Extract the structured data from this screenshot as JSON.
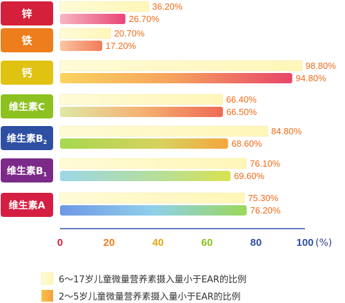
{
  "chart_data": {
    "type": "bar",
    "orientation": "horizontal",
    "categories": [
      "锌",
      "铁",
      "钙",
      "维生素C",
      "维生素B2",
      "维生素B1",
      "维生素A"
    ],
    "category_display": [
      {
        "main": "锌",
        "sub": ""
      },
      {
        "main": "铁",
        "sub": ""
      },
      {
        "main": "钙",
        "sub": ""
      },
      {
        "main": "维生素C",
        "sub": ""
      },
      {
        "main": "维生素B",
        "sub": "2"
      },
      {
        "main": "维生素B",
        "sub": "1"
      },
      {
        "main": "维生素A",
        "sub": ""
      }
    ],
    "category_colors": [
      "#d4203a",
      "#ee7d1b",
      "#e0c212",
      "#8cc11f",
      "#2f4fa3",
      "#7c2a8a",
      "#d51f42"
    ],
    "series": [
      {
        "name": "6～17岁儿童微量营养素摄入量小于EAR的比例",
        "values": [
          36.2,
          20.7,
          98.8,
          66.4,
          84.8,
          76.1,
          75.3
        ],
        "labels": [
          "36.20%",
          "20.70%",
          "98.80%",
          "66.40%",
          "84.80%",
          "76.10%",
          "75.30%"
        ]
      },
      {
        "name": "2～5岁儿童微量营养素摄入量小于EAR的比例",
        "values": [
          26.7,
          17.2,
          94.8,
          66.5,
          68.6,
          69.6,
          76.2
        ],
        "labels": [
          "26.70%",
          "17.20%",
          "94.80%",
          "66.50%",
          "68.60%",
          "69.60%",
          "76.20%"
        ]
      }
    ],
    "xlim": [
      0,
      100
    ],
    "x_ticks": [
      "0",
      "20",
      "40",
      "60",
      "80",
      "100"
    ],
    "x_tick_colors": [
      "#d21f3c",
      "#ee7d1b",
      "#e0a812",
      "#8cc11f",
      "#2f4fa3",
      "#2f4fa3"
    ],
    "x_unit": "(%)",
    "grid": false,
    "legend_position": "bottom-center"
  }
}
